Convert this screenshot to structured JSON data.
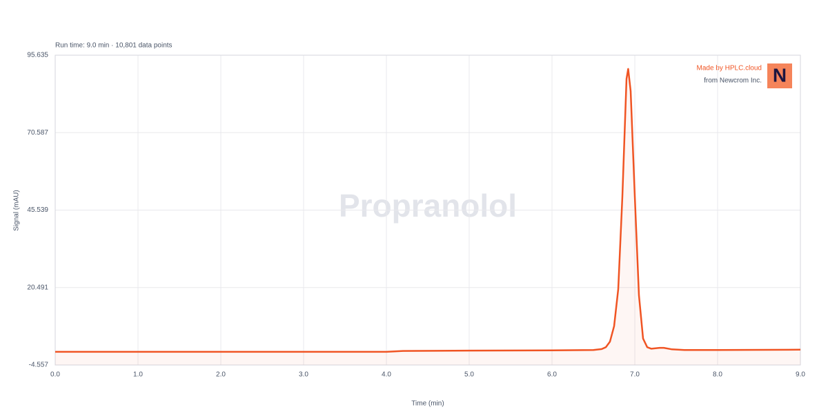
{
  "chart_data": {
    "type": "line",
    "subtitle": "Run time: 9.0 min · 10,801 data points",
    "watermark": "Propranolol",
    "branding": {
      "line1": "Made by HPLC.cloud",
      "line2": "from Newcrom Inc.",
      "logo": "N"
    },
    "x_label": "Time (min)",
    "y_label": "Signal (mAU)",
    "xlim": [
      0,
      9
    ],
    "ylim": [
      -4.557,
      95.635
    ],
    "xticks": [
      {
        "value": 0,
        "label": "0.0"
      },
      {
        "value": 1,
        "label": "1.0"
      },
      {
        "value": 2,
        "label": "2.0"
      },
      {
        "value": 3,
        "label": "3.0"
      },
      {
        "value": 4,
        "label": "4.0"
      },
      {
        "value": 5,
        "label": "5.0"
      },
      {
        "value": 6,
        "label": "6.0"
      },
      {
        "value": 7,
        "label": "7.0"
      },
      {
        "value": 8,
        "label": "8.0"
      },
      {
        "value": 9,
        "label": "9.0"
      }
    ],
    "yticks": [
      -4.557,
      20.491,
      45.539,
      70.587,
      95.635
    ],
    "grid": true,
    "series": [
      {
        "name": "Signal",
        "color": "#f05423",
        "x": [
          0,
          1,
          2,
          3,
          4,
          4.2,
          5,
          6,
          6.5,
          6.6,
          6.65,
          6.7,
          6.75,
          6.8,
          6.85,
          6.9,
          6.92,
          6.95,
          7.0,
          7.05,
          7.1,
          7.15,
          7.2,
          7.3,
          7.35,
          7.45,
          7.6,
          8,
          9
        ],
        "values": [
          -0.3,
          -0.3,
          -0.3,
          -0.3,
          -0.3,
          0,
          0.1,
          0.2,
          0.3,
          0.6,
          1.2,
          3,
          8,
          20,
          50,
          88,
          91.2,
          84,
          50,
          18,
          4,
          1.2,
          0.7,
          1.0,
          1.0,
          0.5,
          0.3,
          0.3,
          0.4
        ]
      }
    ]
  }
}
